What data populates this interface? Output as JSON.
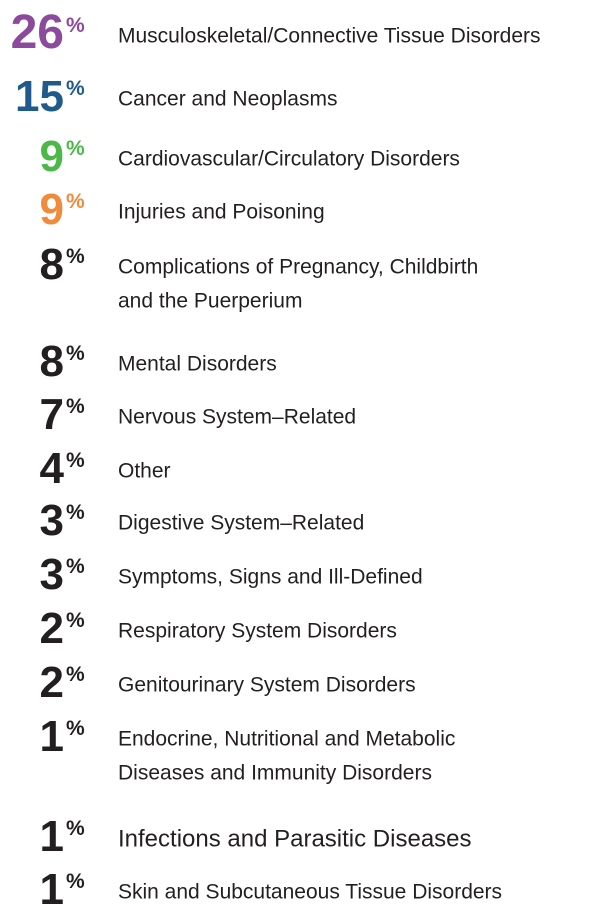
{
  "items": [
    {
      "value": 26,
      "unit": "%",
      "color": "#8b4a9c",
      "label_lines": [
        "Musculoskeletal/Connective Tissue Disorders"
      ]
    },
    {
      "value": 15,
      "unit": "%",
      "color": "#1f5a8c",
      "label_lines": [
        "Cancer and Neoplasms"
      ]
    },
    {
      "value": 9,
      "unit": "%",
      "color": "#4cb848",
      "label_lines": [
        "Cardiovascular/Circulatory Disorders"
      ]
    },
    {
      "value": 9,
      "unit": "%",
      "color": "#f08a3c",
      "label_lines": [
        "Injuries and Poisoning"
      ]
    },
    {
      "value": 8,
      "unit": "%",
      "color": "#231f20",
      "label_lines": [
        "Complications of Pregnancy, Childbirth",
        "and the Puerperium"
      ]
    },
    {
      "value": 8,
      "unit": "%",
      "color": "#231f20",
      "label_lines": [
        "Mental Disorders"
      ]
    },
    {
      "value": 7,
      "unit": "%",
      "color": "#231f20",
      "label_lines": [
        "Nervous System–Related"
      ]
    },
    {
      "value": 4,
      "unit": "%",
      "color": "#231f20",
      "label_lines": [
        "Other"
      ]
    },
    {
      "value": 3,
      "unit": "%",
      "color": "#231f20",
      "label_lines": [
        "Digestive System–Related"
      ]
    },
    {
      "value": 3,
      "unit": "%",
      "color": "#231f20",
      "label_lines": [
        "Symptoms, Signs and Ill-Defined"
      ]
    },
    {
      "value": 2,
      "unit": "%",
      "color": "#231f20",
      "label_lines": [
        "Respiratory System Disorders"
      ]
    },
    {
      "value": 2,
      "unit": "%",
      "color": "#231f20",
      "label_lines": [
        "Genitourinary System Disorders"
      ]
    },
    {
      "value": 1,
      "unit": "%",
      "color": "#231f20",
      "label_lines": [
        "Endocrine, Nutritional and Metabolic",
        "Diseases and Immunity Disorders"
      ]
    },
    {
      "value": 1,
      "unit": "%",
      "color": "#231f20",
      "label_lines": [
        "Infections and Parasitic Diseases"
      ]
    },
    {
      "value": 1,
      "unit": "%",
      "color": "#231f20",
      "label_lines": [
        "Skin and Subcutaneous Tissue Disorders"
      ]
    }
  ]
}
